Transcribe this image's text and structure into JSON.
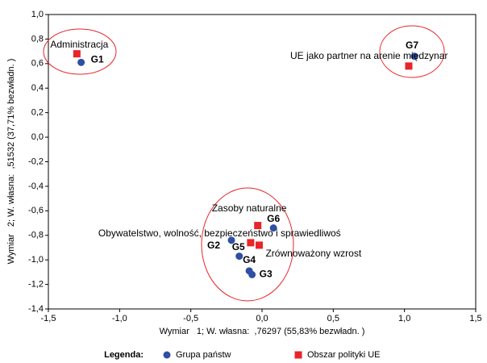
{
  "chart_data": {
    "type": "scatter",
    "x_label": "Wymiar   1; W. własna:  ,76297 (55,83% bezwładn. )",
    "y_label": "Wymiar   2; W. własna:  ,51532 (37,71% bezwładn. )",
    "legend_title": "Legenda:",
    "xlim": [
      -1.5,
      1.5
    ],
    "xticks": [
      {
        "value": -1.5,
        "label": "-1,5"
      },
      {
        "value": -1.0,
        "label": "-1,0"
      },
      {
        "value": -0.5,
        "label": "-0,5"
      },
      {
        "value": 0,
        "label": "0,0"
      },
      {
        "value": 0.5,
        "label": "0,5"
      },
      {
        "value": 1.0,
        "label": "1,0"
      },
      {
        "value": 1.5,
        "label": "1,5"
      }
    ],
    "ylim": [
      -1.4,
      1.0
    ],
    "yticks": [
      {
        "value": -1.4,
        "label": "-1,4"
      },
      {
        "value": -1.2,
        "label": "-1,2"
      },
      {
        "value": -1.0,
        "label": "-1,0"
      },
      {
        "value": -0.8,
        "label": "-0,8"
      },
      {
        "value": -0.6,
        "label": "-0,6"
      },
      {
        "value": -0.4,
        "label": "-0,4"
      },
      {
        "value": -0.2,
        "label": "-0,2"
      },
      {
        "value": 0,
        "label": "0,0"
      },
      {
        "value": 0.2,
        "label": "0,2"
      },
      {
        "value": 0.4,
        "label": "0,4"
      },
      {
        "value": 0.6,
        "label": "0,6"
      },
      {
        "value": 0.8,
        "label": "0,8"
      },
      {
        "value": 1.0,
        "label": "1,0"
      }
    ],
    "series": [
      {
        "name": "Grupa państw",
        "color": "#2e4fa3",
        "marker": "circle",
        "labels": [
          "G1",
          "G7",
          "G6",
          "G2",
          "G5",
          "G4",
          "G3"
        ],
        "x": [
          -1.27,
          1.07,
          0.08,
          -0.215,
          -0.16,
          -0.09,
          -0.07
        ],
        "values": [
          0.61,
          0.66,
          -0.74,
          -0.84,
          -0.97,
          -1.09,
          -1.12
        ]
      },
      {
        "name": "Obszar polityki UE",
        "color": "#e8252a",
        "marker": "square",
        "labels": [
          "Administracja",
          "UE jako partner na arenie międzynar",
          "Zasoby naturalne",
          "Obywatelstwo, wolność, bezpieczeństwo i sprawiedliwoś",
          "Zrównoważony wzrost"
        ],
        "x": [
          -1.3,
          1.03,
          -0.03,
          -0.08,
          -0.02
        ],
        "values": [
          0.68,
          0.58,
          -0.72,
          -0.86,
          -0.88
        ]
      }
    ]
  }
}
